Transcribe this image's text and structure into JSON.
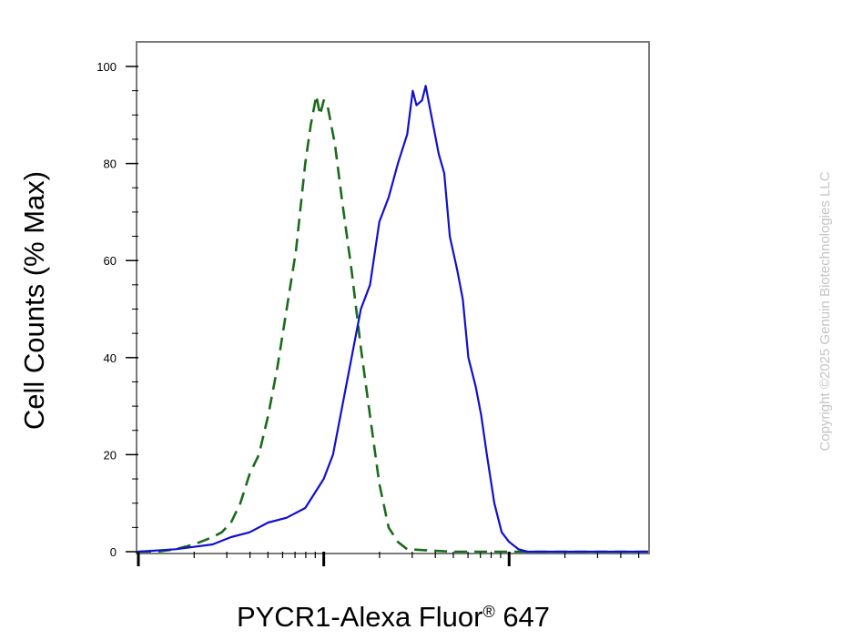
{
  "chart_data": {
    "type": "line",
    "ylabel": "Cell Counts (% Max)",
    "xlabel": {
      "main": "PYCR1-Alexa Fluor",
      "superscript": "®",
      "suffix": " 647"
    },
    "xscale": "log",
    "ylim": [
      0,
      100
    ],
    "xlim_decades": [
      0,
      2.75
    ],
    "yticks": [
      0,
      20,
      40,
      60,
      80,
      100
    ],
    "ytick_labels": [
      "0",
      "20",
      "40",
      "60",
      "80",
      "100"
    ],
    "grid": false,
    "legend": "none",
    "series": [
      {
        "style": "dashed",
        "color": "#1a6b1a",
        "points": [
          [
            0.0,
            0
          ],
          [
            0.1,
            0
          ],
          [
            0.2,
            0.5
          ],
          [
            0.3,
            1.5
          ],
          [
            0.4,
            3
          ],
          [
            0.45,
            4
          ],
          [
            0.5,
            6
          ],
          [
            0.55,
            10
          ],
          [
            0.6,
            16
          ],
          [
            0.65,
            20
          ],
          [
            0.7,
            28
          ],
          [
            0.75,
            38
          ],
          [
            0.8,
            50
          ],
          [
            0.85,
            62
          ],
          [
            0.9,
            80
          ],
          [
            0.93,
            88
          ],
          [
            0.96,
            94
          ],
          [
            0.98,
            90
          ],
          [
            1.0,
            93
          ],
          [
            1.02,
            92
          ],
          [
            1.06,
            84
          ],
          [
            1.1,
            72
          ],
          [
            1.15,
            58
          ],
          [
            1.2,
            42
          ],
          [
            1.25,
            28
          ],
          [
            1.3,
            14
          ],
          [
            1.35,
            5
          ],
          [
            1.4,
            2
          ],
          [
            1.45,
            0.5
          ],
          [
            1.55,
            0.3
          ],
          [
            1.7,
            0
          ],
          [
            2.0,
            0
          ],
          [
            2.75,
            0
          ]
        ]
      },
      {
        "style": "solid",
        "color": "#1010d0",
        "points": [
          [
            0.0,
            0
          ],
          [
            0.2,
            0.5
          ],
          [
            0.3,
            1
          ],
          [
            0.4,
            1.5
          ],
          [
            0.5,
            3
          ],
          [
            0.6,
            4
          ],
          [
            0.7,
            6
          ],
          [
            0.8,
            7
          ],
          [
            0.9,
            9
          ],
          [
            0.95,
            12
          ],
          [
            1.0,
            15
          ],
          [
            1.05,
            20
          ],
          [
            1.1,
            30
          ],
          [
            1.15,
            40
          ],
          [
            1.2,
            50
          ],
          [
            1.25,
            55
          ],
          [
            1.3,
            68
          ],
          [
            1.35,
            73
          ],
          [
            1.4,
            80
          ],
          [
            1.45,
            86
          ],
          [
            1.48,
            95
          ],
          [
            1.5,
            92
          ],
          [
            1.53,
            93
          ],
          [
            1.55,
            96
          ],
          [
            1.58,
            90
          ],
          [
            1.62,
            82
          ],
          [
            1.65,
            78
          ],
          [
            1.68,
            65
          ],
          [
            1.72,
            58
          ],
          [
            1.75,
            52
          ],
          [
            1.78,
            40
          ],
          [
            1.82,
            34
          ],
          [
            1.85,
            28
          ],
          [
            1.88,
            20
          ],
          [
            1.92,
            10
          ],
          [
            1.96,
            4
          ],
          [
            2.0,
            2
          ],
          [
            2.05,
            0.5
          ],
          [
            2.1,
            0
          ],
          [
            2.75,
            0
          ]
        ]
      }
    ]
  },
  "watermark": "Copyright ©2025 Genuin Biotechnologies LLC"
}
